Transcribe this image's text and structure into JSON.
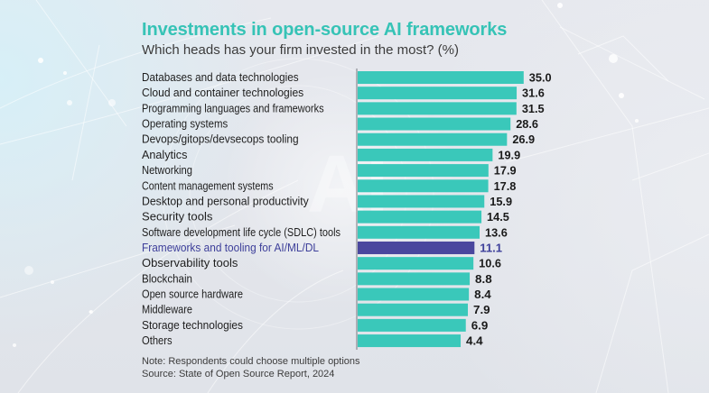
{
  "header": {
    "title": "Investments in open-source AI frameworks",
    "subtitle": "Which heads has your firm invested in the most? (%)"
  },
  "footer": {
    "note": "Note: Respondents could choose multiple options",
    "source": "Source: State of Open Source Report, 2024"
  },
  "colors": {
    "bar": "#3ac8ba",
    "highlight_bar": "#4a479e",
    "highlight_text": "#3d3f9a",
    "title": "#36c3b6",
    "axis": "#8a8c92"
  },
  "chart_data": {
    "type": "bar",
    "orientation": "horizontal",
    "title": "Investments in open-source AI frameworks",
    "subtitle": "Which heads has your firm invested in the most? (%)",
    "xlabel": "",
    "ylabel": "",
    "unit": "%",
    "grid": false,
    "legend": "none",
    "categories": [
      "Databases and data technologies",
      "Cloud and container technologies",
      "Programming languages and frameworks",
      "Operating systems",
      "Devops/gitops/devsecops tooling",
      "Analytics",
      "Networking",
      "Content management systems",
      "Desktop and personal productivity",
      "Security tools",
      "Software development life cycle (SDLC) tools",
      "Frameworks and tooling for AI/ML/DL",
      "Observability tools",
      "Blockchain",
      "Open source hardware",
      "Middleware",
      "Storage technologies",
      "Others"
    ],
    "values": [
      35.0,
      31.6,
      31.5,
      28.6,
      26.9,
      19.9,
      17.9,
      17.8,
      15.9,
      14.5,
      13.6,
      11.1,
      10.6,
      8.8,
      8.4,
      7.9,
      6.9,
      4.4
    ],
    "value_labels": [
      "35.0",
      "31.6",
      "31.5",
      "28.6",
      "26.9",
      "19.9",
      "17.9",
      "17.8",
      "15.9",
      "14.5",
      "13.6",
      "11.1",
      "10.6",
      "8.8",
      "8.4",
      "7.9",
      "6.9",
      "4.4"
    ],
    "highlighted_category": "Frameworks and tooling for AI/ML/DL",
    "note": "Note: Respondents could choose multiple options",
    "source": "Source: State of Open Source Report, 2024"
  }
}
